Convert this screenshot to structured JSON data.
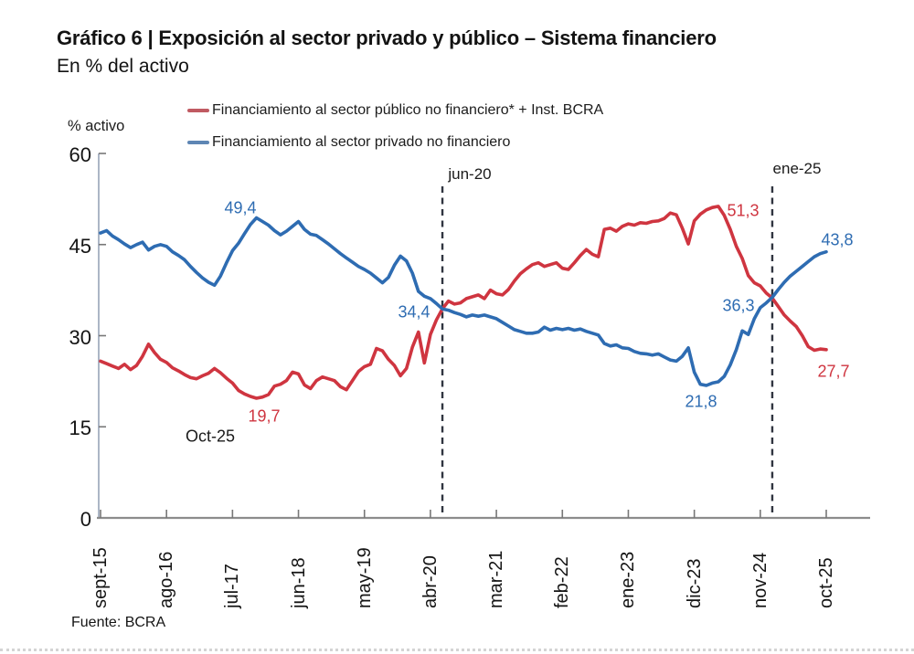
{
  "chart_data": {
    "type": "line",
    "title": "Gráfico 6 | Exposición al sector privado y público – Sistema financiero",
    "subtitle": "En % del activo",
    "y_axis_title": "% activo",
    "source": "Fuente: BCRA",
    "ylim": [
      0,
      60
    ],
    "y_ticks": [
      60,
      45,
      30,
      15,
      0
    ],
    "x_tick_labels": [
      "sept-15",
      "ago-16",
      "jul-17",
      "jun-18",
      "may-19",
      "abr-20",
      "mar-21",
      "feb-22",
      "ene-23",
      "dic-23",
      "nov-24",
      "oct-25"
    ],
    "x_tick_step_months": 11,
    "x_range": {
      "start": "sept-15",
      "end": "oct-25",
      "unit": "month",
      "points": 122
    },
    "grid": false,
    "legend_position": "top-left",
    "series": [
      {
        "key": "publico",
        "name": "Financiamiento al sector público no financiero* + Inst. BCRA",
        "color": "#cf3540",
        "legend_marker_color": "#c05a62",
        "values": [
          25.8,
          25.4,
          25.0,
          24.6,
          25.3,
          24.4,
          25.1,
          26.6,
          28.6,
          27.2,
          26.1,
          25.6,
          24.7,
          24.2,
          23.6,
          23.1,
          22.9,
          23.4,
          23.8,
          24.6,
          23.9,
          23.0,
          22.2,
          21.0,
          20.4,
          20.0,
          19.7,
          19.9,
          20.3,
          21.7,
          22.0,
          22.6,
          24.0,
          23.7,
          21.9,
          21.3,
          22.6,
          23.2,
          22.9,
          22.6,
          21.6,
          21.1,
          22.6,
          24.1,
          24.9,
          25.3,
          27.9,
          27.5,
          26.1,
          25.1,
          23.4,
          24.6,
          28.1,
          30.6,
          25.5,
          30.2,
          32.6,
          34.4,
          35.7,
          35.2,
          35.4,
          36.1,
          36.4,
          36.7,
          36.1,
          37.5,
          36.9,
          36.7,
          37.6,
          39.0,
          40.2,
          41.0,
          41.7,
          42.0,
          41.4,
          41.7,
          42.0,
          41.1,
          40.9,
          42.0,
          43.2,
          44.2,
          43.4,
          43.0,
          47.5,
          47.7,
          47.2,
          48.0,
          48.4,
          48.2,
          48.6,
          48.5,
          48.8,
          48.9,
          49.3,
          50.2,
          49.9,
          47.7,
          45.1,
          48.9,
          50.0,
          50.7,
          51.1,
          51.3,
          49.8,
          47.5,
          44.7,
          42.7,
          39.9,
          38.7,
          38.2,
          37.0,
          36.2,
          34.8,
          33.4,
          32.4,
          31.5,
          30.0,
          28.2,
          27.6,
          27.8,
          27.7
        ]
      },
      {
        "key": "privado",
        "name": "Financiamiento al sector privado no financiero",
        "color": "#2e6cb2",
        "legend_marker_color": "#5e86b4",
        "values": [
          46.9,
          47.3,
          46.4,
          45.8,
          45.1,
          44.5,
          45.0,
          45.4,
          44.1,
          44.7,
          45.0,
          44.7,
          43.8,
          43.2,
          42.5,
          41.4,
          40.4,
          39.5,
          38.8,
          38.3,
          39.8,
          42.0,
          44.0,
          45.2,
          46.8,
          48.3,
          49.4,
          48.8,
          48.2,
          47.3,
          46.6,
          47.2,
          48.0,
          48.8,
          47.5,
          46.7,
          46.5,
          45.8,
          45.1,
          44.3,
          43.5,
          42.8,
          42.1,
          41.4,
          40.9,
          40.3,
          39.5,
          38.7,
          39.6,
          41.6,
          43.1,
          42.3,
          40.3,
          37.3,
          36.5,
          36.1,
          35.3,
          34.4,
          34.2,
          33.8,
          33.5,
          33.1,
          33.4,
          33.2,
          33.4,
          33.1,
          32.8,
          32.2,
          31.6,
          31.0,
          30.7,
          30.4,
          30.4,
          30.6,
          31.4,
          30.9,
          31.2,
          31.0,
          31.2,
          30.9,
          31.1,
          30.7,
          30.4,
          30.1,
          28.7,
          28.3,
          28.5,
          28.0,
          27.9,
          27.4,
          27.1,
          27.0,
          26.8,
          27.0,
          26.5,
          26.0,
          25.8,
          26.6,
          28.0,
          24.0,
          22.0,
          21.8,
          22.2,
          22.4,
          23.3,
          25.2,
          27.7,
          30.8,
          30.2,
          32.8,
          34.6,
          35.4,
          36.3,
          37.6,
          38.8,
          39.8,
          40.6,
          41.4,
          42.2,
          43.0,
          43.5,
          43.8
        ]
      }
    ],
    "event_lines": [
      {
        "label": "jun-20",
        "month_index": 57
      },
      {
        "label": "ene-25",
        "month_index": 112
      }
    ],
    "annotations": [
      {
        "id": "label-49-4",
        "text": "49,4",
        "series": "privado"
      },
      {
        "id": "label-34-4",
        "text": "34,4",
        "series": "privado"
      },
      {
        "id": "label-36-3",
        "text": "36,3",
        "series": "privado"
      },
      {
        "id": "label-21-8",
        "text": "21,8",
        "series": "privado"
      },
      {
        "id": "label-43-8",
        "text": "43,8",
        "series": "privado"
      },
      {
        "id": "label-19-7",
        "text": "19,7",
        "series": "publico"
      },
      {
        "id": "label-51-3",
        "text": "51,3",
        "series": "publico"
      },
      {
        "id": "label-27-7",
        "text": "27,7",
        "series": "publico"
      },
      {
        "id": "label-oct-25",
        "text": "Oct-25",
        "series": "none"
      }
    ]
  }
}
